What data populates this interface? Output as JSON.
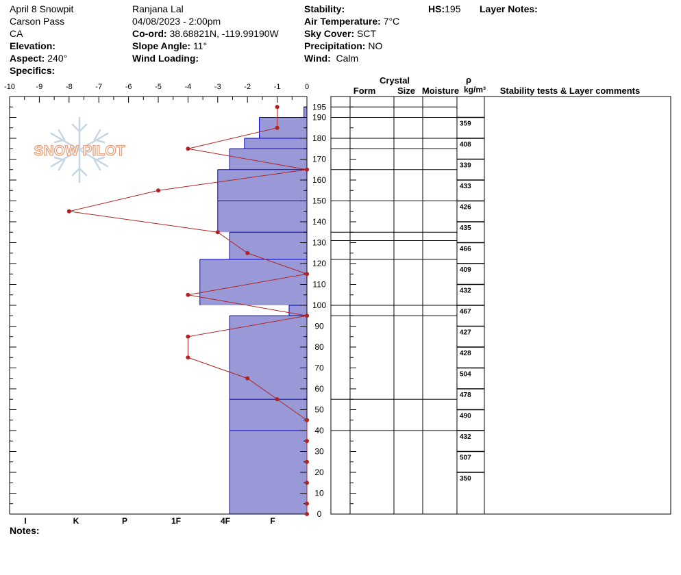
{
  "header": {
    "col1": [
      "April 8 Snowpit",
      "Carson Pass",
      "CA"
    ],
    "elevation_label": "Elevation:",
    "aspect_label": "Aspect:",
    "aspect_value": "240°",
    "specifics_label": "Specifics:",
    "observer": "Ranjana Lal",
    "datetime": "04/08/2023 - 2:00pm",
    "coord_label": "Co-ord:",
    "coord_value": "38.68821N, -119.99190W",
    "slope_label": "Slope Angle:",
    "slope_value": "11°",
    "wind_loading_label": "Wind Loading:",
    "stability_label": "Stability:",
    "air_temp_label": "Air Temperature:",
    "air_temp_value": "7°C",
    "sky_label": "Sky Cover:",
    "sky_value": "SCT",
    "precip_label": "Precipitation:",
    "precip_value": "NO",
    "wind_label": "Wind:",
    "wind_value": "Calm",
    "hs_label": "HS:",
    "hs_value": "195",
    "layer_notes_label": "Layer Notes:",
    "notes_label": "Notes:"
  },
  "table_headers": {
    "crystal": "Crystal",
    "form": "Form",
    "size": "Size",
    "moisture": "Moisture",
    "rho": "ρ",
    "density_unit": "kg/m³",
    "stability": "Stability tests & Layer comments"
  },
  "logo": {
    "text": "SNOW PILOT"
  },
  "colors": {
    "hardness_fill": "#9999d8",
    "hardness_line": "#0000cc",
    "temp": "#b22222"
  },
  "chart_data": {
    "type": "snow-profile",
    "temp_axis": {
      "ticks": [
        -10,
        -9,
        -8,
        -7,
        -6,
        -5,
        -4,
        -3,
        -2,
        -1,
        0
      ],
      "range": [
        -10,
        0
      ]
    },
    "height_axis": {
      "range": [
        0,
        200
      ],
      "ticks": [
        0,
        10,
        20,
        30,
        40,
        50,
        60,
        70,
        80,
        90,
        100,
        110,
        120,
        130,
        140,
        150,
        160,
        170,
        180,
        190,
        195
      ]
    },
    "hardness_axis": {
      "labels": [
        "I",
        "K",
        "P",
        "1F",
        "4F",
        "F"
      ]
    },
    "hardness_layers": [
      {
        "top": 195,
        "bottom": 190,
        "hardness": 0.1
      },
      {
        "top": 190,
        "bottom": 180,
        "hardness": 1.6
      },
      {
        "top": 180,
        "bottom": 175,
        "hardness": 2.1
      },
      {
        "top": 175,
        "bottom": 165,
        "hardness": 2.6
      },
      {
        "top": 165,
        "bottom": 150,
        "hardness": 3.0
      },
      {
        "top": 150,
        "bottom": 135,
        "hardness": 3.0
      },
      {
        "top": 135,
        "bottom": 122,
        "hardness": 2.6
      },
      {
        "top": 122,
        "bottom": 100,
        "hardness": 3.6
      },
      {
        "top": 100,
        "bottom": 95,
        "hardness": 0.6
      },
      {
        "top": 95,
        "bottom": 55,
        "hardness": 2.6
      },
      {
        "top": 55,
        "bottom": 40,
        "hardness": 2.6
      },
      {
        "top": 40,
        "bottom": 0,
        "hardness": 2.6
      }
    ],
    "temperature_profile": [
      {
        "h": 195,
        "t": -1
      },
      {
        "h": 185,
        "t": -1
      },
      {
        "h": 175,
        "t": -4
      },
      {
        "h": 165,
        "t": 0
      },
      {
        "h": 155,
        "t": -5
      },
      {
        "h": 145,
        "t": -8
      },
      {
        "h": 135,
        "t": -3
      },
      {
        "h": 125,
        "t": -2
      },
      {
        "h": 115,
        "t": 0
      },
      {
        "h": 105,
        "t": -4
      },
      {
        "h": 95,
        "t": 0
      },
      {
        "h": 85,
        "t": -4
      },
      {
        "h": 75,
        "t": -4
      },
      {
        "h": 65,
        "t": -2
      },
      {
        "h": 55,
        "t": -1
      },
      {
        "h": 45,
        "t": 0
      },
      {
        "h": 35,
        "t": 0
      },
      {
        "h": 25,
        "t": 0
      },
      {
        "h": 15,
        "t": 0
      },
      {
        "h": 5,
        "t": 0
      },
      {
        "h": 0,
        "t": 0
      }
    ],
    "layer_boundaries": [
      195,
      190,
      180,
      175,
      165,
      150,
      135,
      131,
      122,
      100,
      95,
      55,
      40
    ],
    "density": [
      {
        "top": 190,
        "bottom": 180,
        "value": "359"
      },
      {
        "top": 180,
        "bottom": 170,
        "value": "408"
      },
      {
        "top": 170,
        "bottom": 160,
        "value": "339"
      },
      {
        "top": 160,
        "bottom": 150,
        "value": "433"
      },
      {
        "top": 150,
        "bottom": 140,
        "value": "426"
      },
      {
        "top": 140,
        "bottom": 130,
        "value": "435"
      },
      {
        "top": 130,
        "bottom": 120,
        "value": "466"
      },
      {
        "top": 120,
        "bottom": 110,
        "value": "409"
      },
      {
        "top": 110,
        "bottom": 100,
        "value": "432"
      },
      {
        "top": 100,
        "bottom": 90,
        "value": "467"
      },
      {
        "top": 90,
        "bottom": 80,
        "value": "427"
      },
      {
        "top": 80,
        "bottom": 70,
        "value": "428"
      },
      {
        "top": 70,
        "bottom": 60,
        "value": "504"
      },
      {
        "top": 60,
        "bottom": 50,
        "value": "478"
      },
      {
        "top": 50,
        "bottom": 40,
        "value": "490"
      },
      {
        "top": 40,
        "bottom": 30,
        "value": "432"
      },
      {
        "top": 30,
        "bottom": 20,
        "value": "507"
      },
      {
        "top": 20,
        "bottom": 10,
        "value": "350"
      }
    ]
  }
}
